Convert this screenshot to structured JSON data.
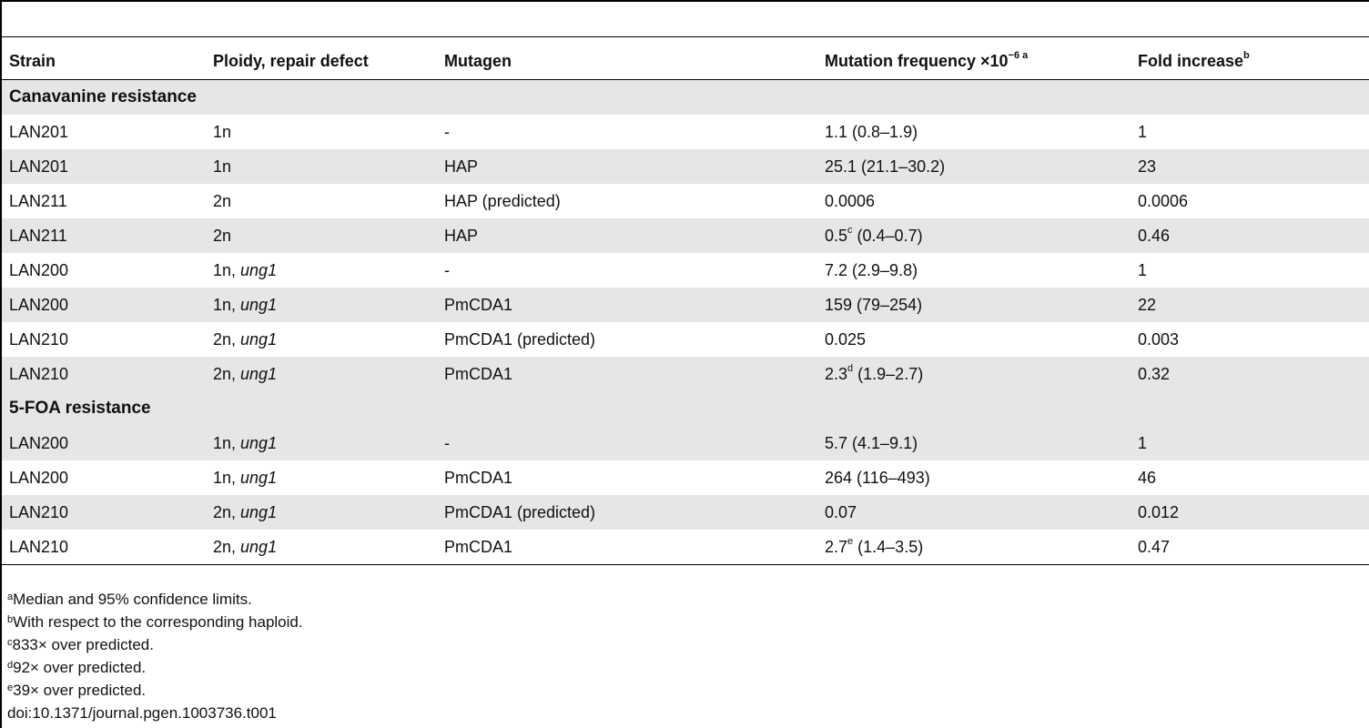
{
  "columns": {
    "strain": "Strain",
    "ploidy": "Ploidy, repair defect",
    "mutagen": "Mutagen",
    "frequency": "Mutation frequency ×10",
    "frequency_exp": "−6 a",
    "fold": "Fold increase",
    "fold_sup": "b"
  },
  "sections": [
    {
      "title": "Canavanine resistance",
      "rows": [
        {
          "strain": "LAN201",
          "ploidy": "1n",
          "ploidy_gene": "",
          "mutagen": "-",
          "freq": "1.1",
          "freq_sup": "",
          "freq_ci": " (0.8–1.9)",
          "fold": "1",
          "shaded": false
        },
        {
          "strain": "LAN201",
          "ploidy": "1n",
          "ploidy_gene": "",
          "mutagen": "HAP",
          "freq": "25.1",
          "freq_sup": "",
          "freq_ci": " (21.1–30.2)",
          "fold": "23",
          "shaded": true
        },
        {
          "strain": "LAN211",
          "ploidy": "2n",
          "ploidy_gene": "",
          "mutagen": "HAP (predicted)",
          "freq": "0.0006",
          "freq_sup": "",
          "freq_ci": "",
          "fold": "0.0006",
          "shaded": false
        },
        {
          "strain": "LAN211",
          "ploidy": "2n",
          "ploidy_gene": "",
          "mutagen": "HAP",
          "freq": "0.5",
          "freq_sup": "c",
          "freq_ci": " (0.4–0.7)",
          "fold": "0.46",
          "shaded": true
        },
        {
          "strain": "LAN200",
          "ploidy": "1n, ",
          "ploidy_gene": "ung1",
          "mutagen": "-",
          "freq": "7.2",
          "freq_sup": "",
          "freq_ci": " (2.9–9.8)",
          "fold": "1",
          "shaded": false
        },
        {
          "strain": "LAN200",
          "ploidy": "1n, ",
          "ploidy_gene": "ung1",
          "mutagen": "PmCDA1",
          "freq": "159",
          "freq_sup": "",
          "freq_ci": " (79–254)",
          "fold": "22",
          "shaded": true
        },
        {
          "strain": "LAN210",
          "ploidy": "2n, ",
          "ploidy_gene": "ung1",
          "mutagen": "PmCDA1 (predicted)",
          "freq": "0.025",
          "freq_sup": "",
          "freq_ci": "",
          "fold": "0.003",
          "shaded": false
        },
        {
          "strain": "LAN210",
          "ploidy": "2n, ",
          "ploidy_gene": "ung1",
          "mutagen": "PmCDA1",
          "freq": "2.3",
          "freq_sup": "d",
          "freq_ci": " (1.9–2.7)",
          "fold": "0.32",
          "shaded": true
        }
      ]
    },
    {
      "title": "5-FOA resistance",
      "rows": [
        {
          "strain": "LAN200",
          "ploidy": "1n, ",
          "ploidy_gene": "ung1",
          "mutagen": "-",
          "freq": "5.7",
          "freq_sup": "",
          "freq_ci": " (4.1–9.1)",
          "fold": "1",
          "shaded": true
        },
        {
          "strain": "LAN200",
          "ploidy": "1n, ",
          "ploidy_gene": "ung1",
          "mutagen": "PmCDA1",
          "freq": "264",
          "freq_sup": "",
          "freq_ci": " (116–493)",
          "fold": "46",
          "shaded": false
        },
        {
          "strain": "LAN210",
          "ploidy": "2n, ",
          "ploidy_gene": "ung1",
          "mutagen": "PmCDA1 (predicted)",
          "freq": "0.07",
          "freq_sup": "",
          "freq_ci": "",
          "fold": "0.012",
          "shaded": true
        },
        {
          "strain": "LAN210",
          "ploidy": "2n, ",
          "ploidy_gene": "ung1",
          "mutagen": "PmCDA1",
          "freq": "2.7",
          "freq_sup": "e",
          "freq_ci": " (1.4–3.5)",
          "fold": "0.47",
          "shaded": false
        }
      ]
    }
  ],
  "footnotes": [
    {
      "mark": "a",
      "text": "Median and 95% confidence limits."
    },
    {
      "mark": "b",
      "text": "With respect to the corresponding haploid."
    },
    {
      "mark": "c",
      "text": "833× over predicted."
    },
    {
      "mark": "d",
      "text": "92× over predicted."
    },
    {
      "mark": "e",
      "text": "39× over predicted."
    }
  ],
  "doi": "doi:10.1371/journal.pgen.1003736.t001"
}
